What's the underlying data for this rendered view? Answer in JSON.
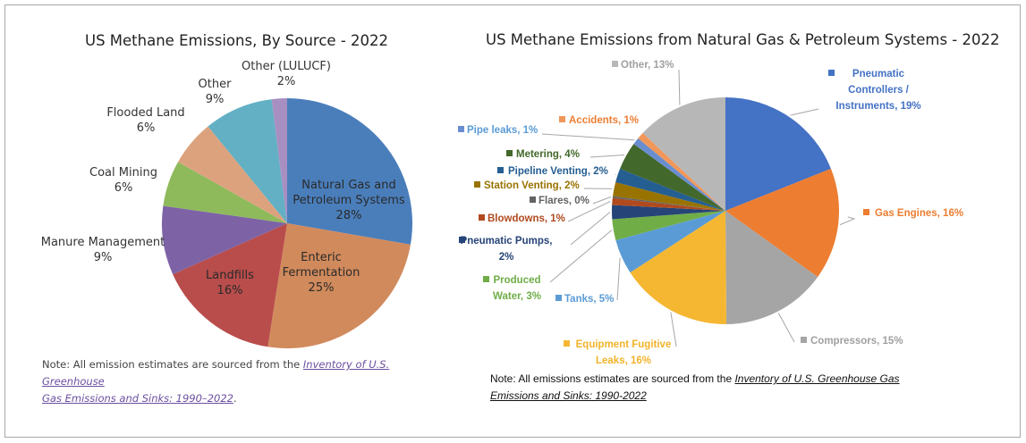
{
  "chart_data": [
    {
      "type": "pie",
      "title": "US Methane Emissions, By Source - 2022",
      "unit": "%",
      "slices": [
        {
          "label": [
            "Natural Gas and",
            "Petroleum Systems"
          ],
          "value": 28,
          "value_label": "28%",
          "color": "#4a7ebb"
        },
        {
          "label": [
            "Enteric",
            "Fermentation"
          ],
          "value": 25,
          "value_label": "25%",
          "color": "#d18a5c"
        },
        {
          "label": [
            "Landfills"
          ],
          "value": 16,
          "value_label": "16%",
          "color": "#b94d4b"
        },
        {
          "label": [
            "Manure Management"
          ],
          "value": 9,
          "value_label": "9%",
          "color": "#7d63a6"
        },
        {
          "label": [
            "Coal Mining"
          ],
          "value": 6,
          "value_label": "6%",
          "color": "#8fba5c"
        },
        {
          "label": [
            "Flooded Land"
          ],
          "value": 6,
          "value_label": "6%",
          "color": "#dca27e"
        },
        {
          "label": [
            "Other"
          ],
          "value": 9,
          "value_label": "9%",
          "color": "#63b0c4"
        },
        {
          "label": [
            "Other (LULUCF)"
          ],
          "value": 2,
          "value_label": "2%",
          "color": "#a78fc2"
        }
      ],
      "note": {
        "prefix": "Note: All emission estimates are sourced from the ",
        "link1": "Inventory of U.S. Greenhouse",
        "link2": "Gas Emissions and Sinks: 1990–2022",
        "suffix": "."
      }
    },
    {
      "type": "pie",
      "title": "US Methane Emissions from Natural Gas & Petroleum Systems - 2022",
      "unit": "%",
      "slices": [
        {
          "label": [
            "Pneumatic",
            "Controllers /",
            "Instruments, 19%"
          ],
          "value": 19,
          "color": "#4472c4"
        },
        {
          "label": [
            "Gas Engines, 16%"
          ],
          "value": 16,
          "color": "#ed7d31"
        },
        {
          "label": [
            "Compressors, 15%"
          ],
          "value": 15,
          "color": "#a5a5a5"
        },
        {
          "label": [
            "Equipment Fugitive",
            "Leaks, 16%"
          ],
          "value": 16,
          "color": "#f5b731"
        },
        {
          "label": [
            "Tanks, 5%"
          ],
          "value": 5,
          "color": "#5b9bd5"
        },
        {
          "label": [
            "Produced",
            "Water, 3%"
          ],
          "value": 3,
          "color": "#70ad47"
        },
        {
          "label": [
            "Pneumatic Pumps,",
            "2%"
          ],
          "value": 2,
          "color": "#264478"
        },
        {
          "label": [
            "Blowdowns, 1%"
          ],
          "value": 1,
          "color": "#b04a1e"
        },
        {
          "label": [
            "Flares, 0%"
          ],
          "value": 0.25,
          "color": "#636363"
        },
        {
          "label": [
            "Station Venting, 2%"
          ],
          "value": 2,
          "color": "#997300"
        },
        {
          "label": [
            "Pipeline Venting, 2%"
          ],
          "value": 2,
          "color": "#255e91"
        },
        {
          "label": [
            "Metering, 4%"
          ],
          "value": 4,
          "color": "#43682b"
        },
        {
          "label": [
            "Pipe leaks, 1%"
          ],
          "value": 1,
          "color": "#698ed0"
        },
        {
          "label": [
            "Accidents, 1%"
          ],
          "value": 1,
          "color": "#f1975a"
        },
        {
          "label": [
            "Other, 13%"
          ],
          "value": 13,
          "color": "#b7b7b7"
        }
      ],
      "note": {
        "prefix": "Note: All emissions estimates are sourced from the ",
        "link1": "Inventory of U.S. Greenhouse Gas",
        "link2": "Emissions and Sinks: 1990-2022"
      }
    }
  ]
}
